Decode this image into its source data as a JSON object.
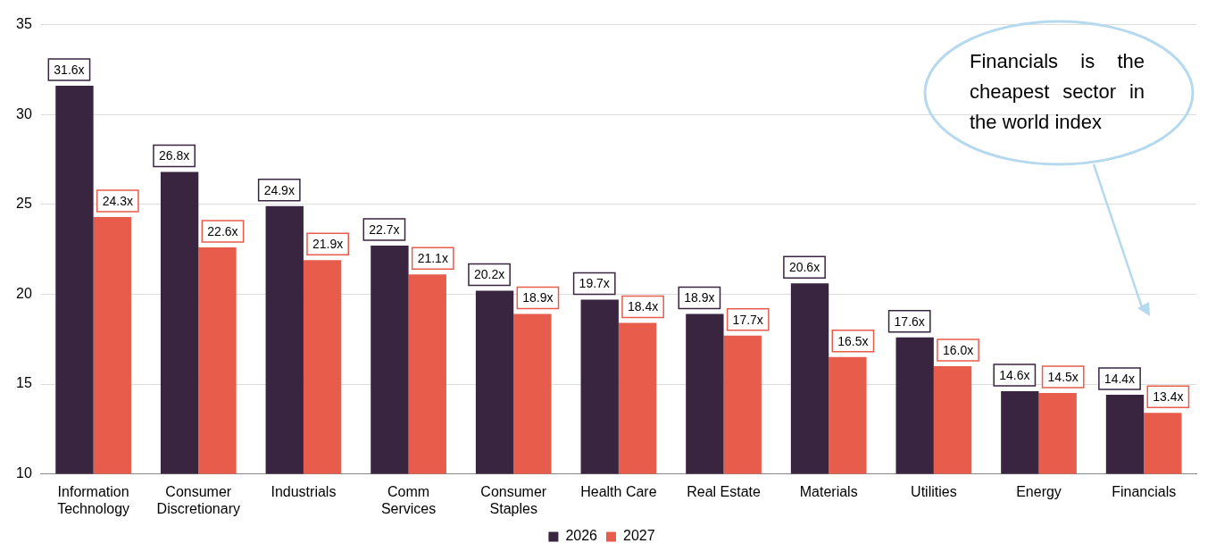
{
  "chart_data": {
    "type": "bar",
    "categories": [
      "Information Technology",
      "Consumer Discretionary",
      "Industrials",
      "Comm Services",
      "Consumer Staples",
      "Health Care",
      "Real Estate",
      "Materials",
      "Utilities",
      "Energy",
      "Financials"
    ],
    "series": [
      {
        "name": "2026",
        "color": "#3a2540",
        "values": [
          31.6,
          26.8,
          24.9,
          22.7,
          20.2,
          19.7,
          18.9,
          20.6,
          17.6,
          14.6,
          14.4
        ],
        "value_labels": [
          "31.6x",
          "26.8x",
          "24.9x",
          "22.7x",
          "20.2x",
          "19.7x",
          "18.9x",
          "20.6x",
          "17.6x",
          "14.6x",
          "14.4x"
        ]
      },
      {
        "name": "2027",
        "color": "#e85c4c",
        "values": [
          24.3,
          22.6,
          21.9,
          21.1,
          18.9,
          18.4,
          17.7,
          16.5,
          16.0,
          14.5,
          13.4
        ],
        "value_labels": [
          "24.3x",
          "22.6x",
          "21.9x",
          "21.1x",
          "18.9x",
          "18.4x",
          "17.7x",
          "16.5x",
          "16.0x",
          "14.5x",
          "13.4x"
        ]
      }
    ],
    "ylim": [
      10,
      35
    ],
    "yticks": [
      10,
      15,
      20,
      25,
      30,
      35
    ],
    "grid": "y",
    "legend": "bottom",
    "annotations": [
      "Financials is the cheapest sector in the world index"
    ]
  }
}
